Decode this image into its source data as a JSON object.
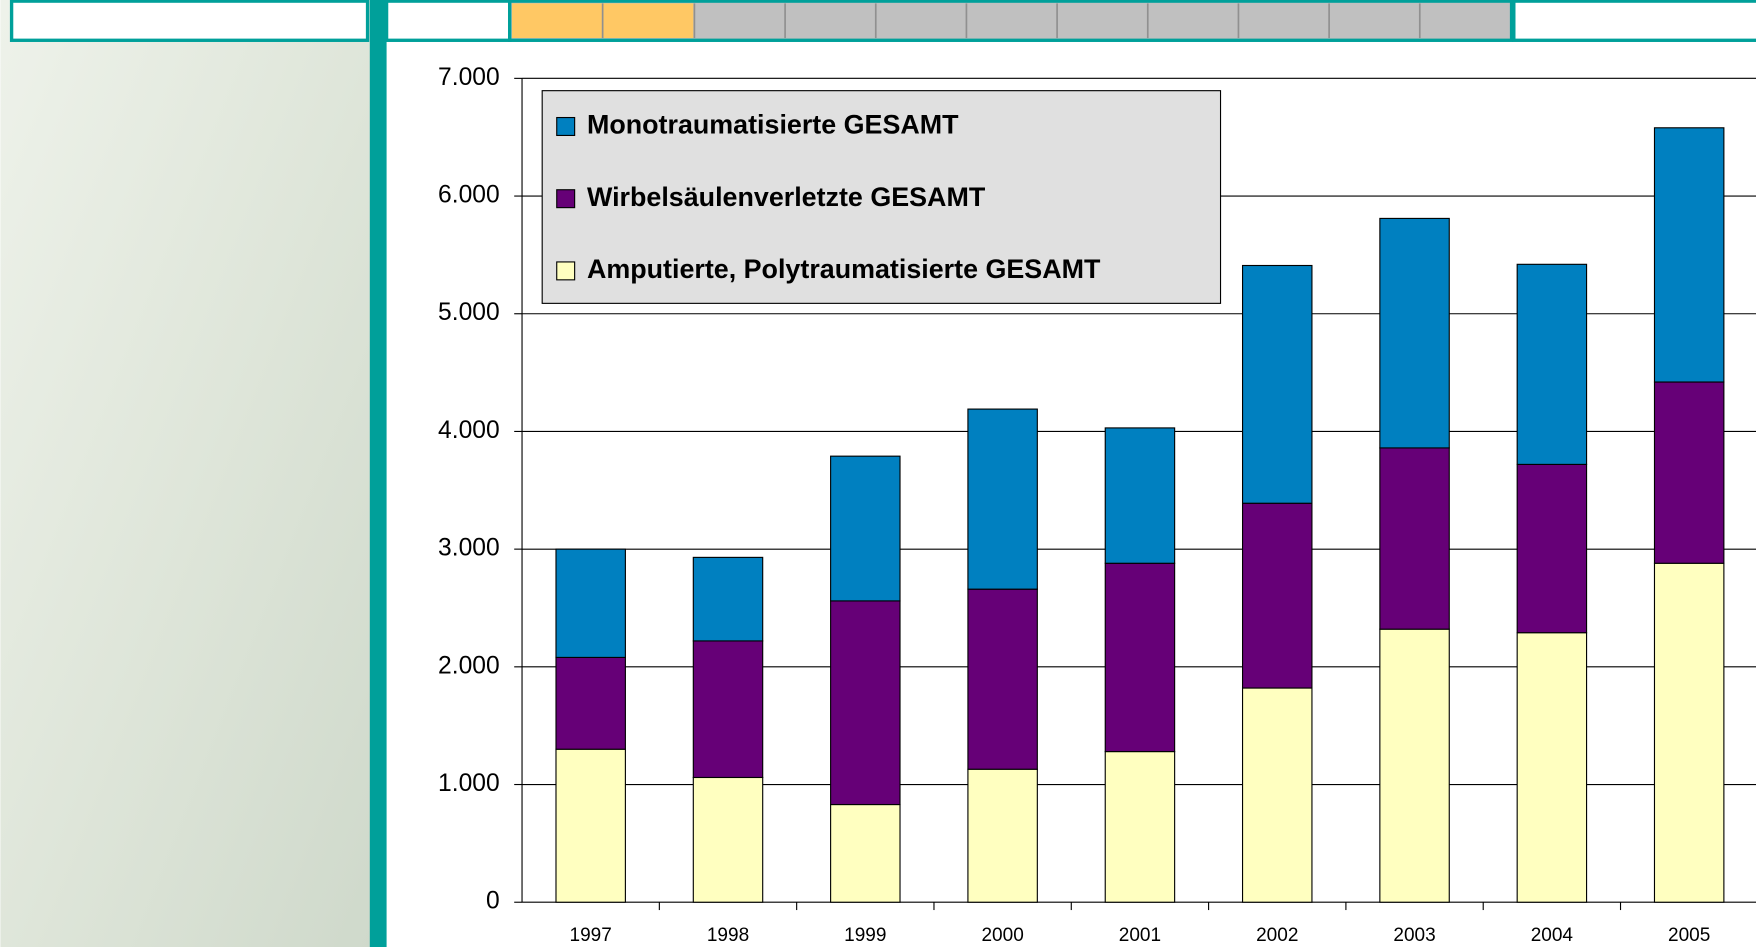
{
  "chart_data": {
    "type": "stacked_bar",
    "categories": [
      "1997",
      "1998",
      "1999",
      "2000",
      "2001",
      "2002",
      "2003",
      "2004",
      "2005"
    ],
    "series": [
      {
        "name": "Amputierte, Polytraumatisierte GESAMT",
        "color": "#ffffc0",
        "values": [
          1300,
          1060,
          830,
          1130,
          1280,
          1820,
          2320,
          2290,
          2880
        ]
      },
      {
        "name": "Wirbelsäulenverletzte GESAMT",
        "color": "#660077",
        "values": [
          780,
          1160,
          1730,
          1530,
          1600,
          1570,
          1540,
          1430,
          1540
        ]
      },
      {
        "name": "Monotraumatisierte GESAMT",
        "color": "#0080c0",
        "values": [
          920,
          710,
          1230,
          1530,
          1150,
          2020,
          1950,
          1700,
          2160
        ]
      }
    ],
    "ylim": [
      0,
      7000
    ],
    "yticks": [
      0,
      {
        "value": 1000,
        "label": "1.000"
      },
      {
        "value": 2000,
        "label": "2.000"
      },
      {
        "value": 3000,
        "label": "3.000"
      },
      {
        "value": 4000,
        "label": "4.000"
      },
      {
        "value": 5000,
        "label": "5.000"
      },
      {
        "value": 6000,
        "label": "6.000"
      },
      {
        "value": 7000,
        "label": "7.000"
      }
    ],
    "grid": true,
    "legend": "top-left"
  }
}
